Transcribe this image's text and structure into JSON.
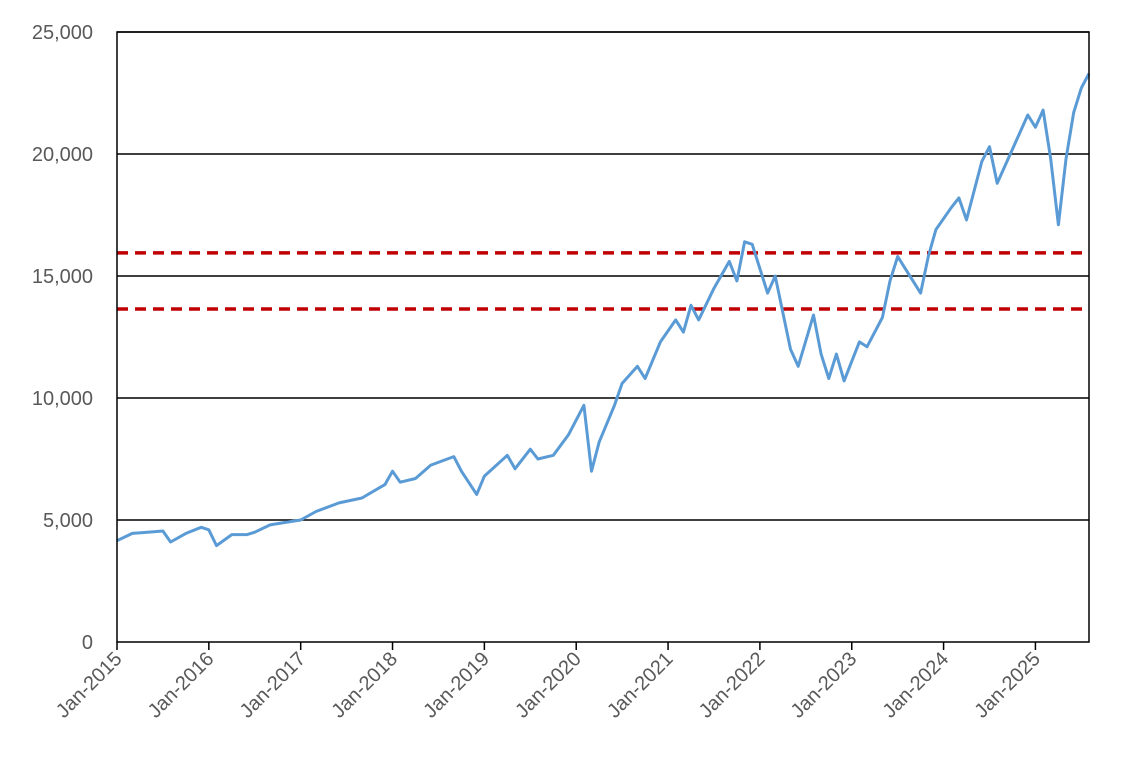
{
  "chart_data": {
    "type": "line",
    "title": "",
    "xlabel": "",
    "ylabel": "",
    "ylim": [
      0,
      25000
    ],
    "y_ticks": [
      {
        "value": 0,
        "label": "0"
      },
      {
        "value": 5000,
        "label": "5,000"
      },
      {
        "value": 10000,
        "label": "10,000"
      },
      {
        "value": 15000,
        "label": "15,000"
      },
      {
        "value": 20000,
        "label": "20,000"
      },
      {
        "value": 25000,
        "label": "25,000"
      }
    ],
    "x_range": [
      "2015-01",
      "2025-08"
    ],
    "x_ticks": [
      {
        "value": "2015-01",
        "label": "Jan-2015"
      },
      {
        "value": "2016-01",
        "label": "Jan-2016"
      },
      {
        "value": "2017-01",
        "label": "Jan-2017"
      },
      {
        "value": "2018-01",
        "label": "Jan-2018"
      },
      {
        "value": "2019-01",
        "label": "Jan-2019"
      },
      {
        "value": "2020-01",
        "label": "Jan-2020"
      },
      {
        "value": "2021-01",
        "label": "Jan-2021"
      },
      {
        "value": "2022-01",
        "label": "Jan-2022"
      },
      {
        "value": "2023-01",
        "label": "Jan-2023"
      },
      {
        "value": "2024-01",
        "label": "Jan-2024"
      },
      {
        "value": "2025-01",
        "label": "Jan-2025"
      }
    ],
    "grid": true,
    "series": [
      {
        "color": "#5B9BD5",
        "points": [
          [
            "2015-01",
            4150
          ],
          [
            "2015-03",
            4450
          ],
          [
            "2015-05",
            4500
          ],
          [
            "2015-07",
            4550
          ],
          [
            "2015-08",
            4100
          ],
          [
            "2015-10",
            4450
          ],
          [
            "2015-12",
            4700
          ],
          [
            "2016-01",
            4600
          ],
          [
            "2016-02",
            3950
          ],
          [
            "2016-04",
            4400
          ],
          [
            "2016-06",
            4400
          ],
          [
            "2016-07",
            4500
          ],
          [
            "2016-09",
            4800
          ],
          [
            "2016-11",
            4900
          ],
          [
            "2017-01",
            5000
          ],
          [
            "2017-03",
            5350
          ],
          [
            "2017-06",
            5700
          ],
          [
            "2017-09",
            5900
          ],
          [
            "2017-12",
            6450
          ],
          [
            "2018-01",
            7000
          ],
          [
            "2018-02",
            6550
          ],
          [
            "2018-04",
            6700
          ],
          [
            "2018-06",
            7250
          ],
          [
            "2018-09",
            7600
          ],
          [
            "2018-10",
            7000
          ],
          [
            "2018-12",
            6050
          ],
          [
            "2019-01",
            6800
          ],
          [
            "2019-04",
            7650
          ],
          [
            "2019-05",
            7100
          ],
          [
            "2019-07",
            7900
          ],
          [
            "2019-08",
            7500
          ],
          [
            "2019-10",
            7650
          ],
          [
            "2019-12",
            8500
          ],
          [
            "2020-02",
            9700
          ],
          [
            "2020-03",
            7000
          ],
          [
            "2020-04",
            8200
          ],
          [
            "2020-06",
            9700
          ],
          [
            "2020-07",
            10600
          ],
          [
            "2020-09",
            11300
          ],
          [
            "2020-10",
            10800
          ],
          [
            "2020-12",
            12300
          ],
          [
            "2021-02",
            13200
          ],
          [
            "2021-03",
            12700
          ],
          [
            "2021-04",
            13800
          ],
          [
            "2021-05",
            13200
          ],
          [
            "2021-07",
            14500
          ],
          [
            "2021-09",
            15600
          ],
          [
            "2021-10",
            14800
          ],
          [
            "2021-11",
            16400
          ],
          [
            "2021-12",
            16300
          ],
          [
            "2022-01",
            15300
          ],
          [
            "2022-02",
            14300
          ],
          [
            "2022-03",
            15000
          ],
          [
            "2022-05",
            12000
          ],
          [
            "2022-06",
            11300
          ],
          [
            "2022-08",
            13400
          ],
          [
            "2022-09",
            11800
          ],
          [
            "2022-10",
            10800
          ],
          [
            "2022-11",
            11800
          ],
          [
            "2022-12",
            10700
          ],
          [
            "2023-01",
            11500
          ],
          [
            "2023-02",
            12300
          ],
          [
            "2023-03",
            12100
          ],
          [
            "2023-05",
            13300
          ],
          [
            "2023-06",
            14800
          ],
          [
            "2023-07",
            15800
          ],
          [
            "2023-08",
            15300
          ],
          [
            "2023-10",
            14300
          ],
          [
            "2023-11",
            15800
          ],
          [
            "2023-12",
            16900
          ],
          [
            "2024-02",
            17800
          ],
          [
            "2024-03",
            18200
          ],
          [
            "2024-04",
            17300
          ],
          [
            "2024-06",
            19700
          ],
          [
            "2024-07",
            20300
          ],
          [
            "2024-08",
            18800
          ],
          [
            "2024-10",
            20200
          ],
          [
            "2024-12",
            21600
          ],
          [
            "2025-01",
            21100
          ],
          [
            "2025-02",
            21800
          ],
          [
            "2025-03",
            19800
          ],
          [
            "2025-04",
            17100
          ],
          [
            "2025-05",
            19800
          ],
          [
            "2025-06",
            21700
          ],
          [
            "2025-07",
            22700
          ],
          [
            "2025-08",
            23300
          ]
        ]
      }
    ],
    "reference_lines": [
      {
        "y": 15950,
        "color": "#C00000",
        "style": "dashed"
      },
      {
        "y": 13650,
        "color": "#C00000",
        "style": "dashed"
      }
    ]
  }
}
